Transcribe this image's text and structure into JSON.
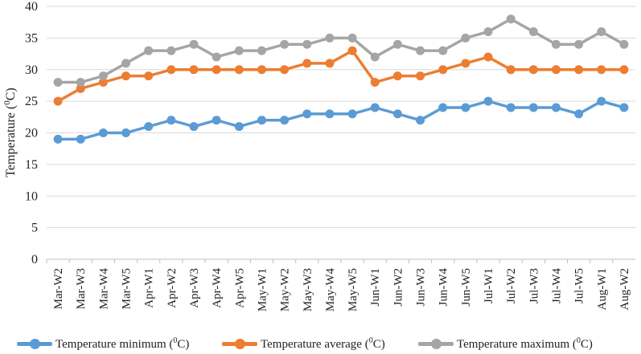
{
  "chart_data": {
    "type": "line",
    "title": "",
    "xlabel": "",
    "ylabel": "Temperature (0C)",
    "ylabel_parts": {
      "pre": "Temperature (",
      "sup": "0",
      "post": "C)"
    },
    "ylim": [
      0,
      40
    ],
    "yticks": [
      0,
      5,
      10,
      15,
      20,
      25,
      30,
      35,
      40
    ],
    "grid": "horizontal",
    "legend": "bottom",
    "categories": [
      "Mar-W2",
      "Mar-W3",
      "Mar-W4",
      "Mar-W5",
      "Apr-W1",
      "Apr-W2",
      "Apr-W3",
      "Apr-W4",
      "Apr-W5",
      "May-W1",
      "May-W2",
      "May-W3",
      "May-W4",
      "May-W5",
      "Jun-W1",
      "Jun-W2",
      "Jun-W3",
      "Jun-W4",
      "Jun-W5",
      "Jul-W1",
      "Jul-W2",
      "Jul-W3",
      "Jul-W4",
      "Jul-W5",
      "Aug-W1",
      "Aug-W2"
    ],
    "series": [
      {
        "name": "Temperature minimum (0C)",
        "label_pre": "Temperature minimum (",
        "label_sup": "0",
        "label_post": "C)",
        "color": "#5b9bd5",
        "values": [
          19,
          19,
          20,
          20,
          21,
          22,
          21,
          22,
          21,
          22,
          22,
          23,
          23,
          23,
          24,
          23,
          22,
          24,
          24,
          25,
          24,
          24,
          24,
          23,
          25,
          24
        ]
      },
      {
        "name": "Temperature average (0C)",
        "label_pre": "Temperature average (",
        "label_sup": "0",
        "label_post": "C)",
        "color": "#ed7d31",
        "values": [
          25,
          27,
          28,
          29,
          29,
          30,
          30,
          30,
          30,
          30,
          30,
          31,
          31,
          33,
          28,
          29,
          29,
          30,
          31,
          32,
          30,
          30,
          30,
          30,
          30,
          30
        ]
      },
      {
        "name": "Temperature maximum (0C)",
        "label_pre": "Temperature maximum (",
        "label_sup": "0",
        "label_post": "C)",
        "color": "#a5a5a5",
        "values": [
          28,
          28,
          29,
          31,
          33,
          33,
          34,
          32,
          33,
          33,
          34,
          34,
          35,
          35,
          32,
          34,
          33,
          33,
          35,
          36,
          38,
          36,
          34,
          34,
          36,
          34
        ]
      }
    ]
  }
}
